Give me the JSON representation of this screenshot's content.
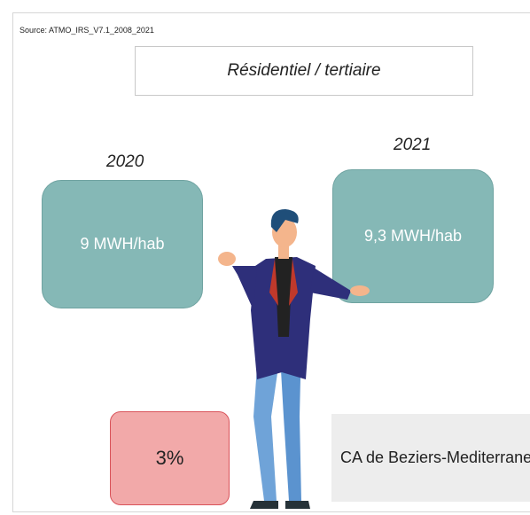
{
  "source": "Source: ATMO_IRS_V7.1_2008_2021",
  "title": "Résidentiel / tertiaire",
  "left": {
    "year": "2020",
    "value": "9 MWH/hab"
  },
  "right": {
    "year": "2021",
    "value": "9,3 MWH/hab"
  },
  "change": "3%",
  "territory": "CA de Beziers-Mediterranee"
}
